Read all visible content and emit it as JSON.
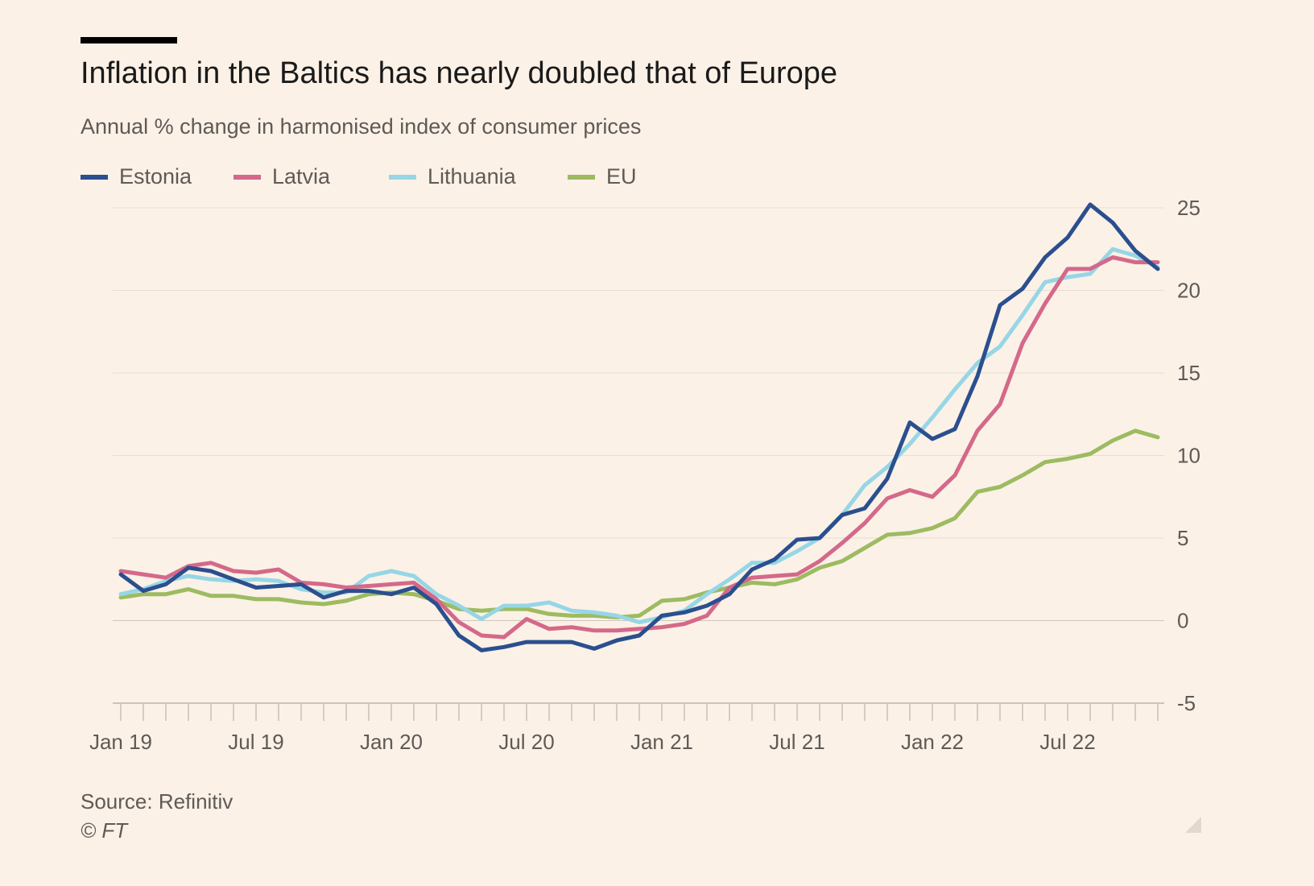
{
  "title": "Inflation in the Baltics has nearly doubled that of Europe",
  "subtitle": "Annual % change in harmonised index of consumer prices",
  "source": "Source: Refinitiv",
  "copyright": "© FT",
  "colors": {
    "background": "#fbf1e7",
    "Estonia": "#2b4f8e",
    "Latvia": "#d4698a",
    "Lithuania": "#96d6e6",
    "EU": "#9dbb61"
  },
  "chart_data": {
    "type": "line",
    "legend_placement": "top-left",
    "grid": true,
    "y_axis_side": "right",
    "ylim": [
      -5,
      25
    ],
    "yticks": [
      -5,
      0,
      5,
      10,
      15,
      20,
      25
    ],
    "x": [
      "Jan 19",
      "Feb 19",
      "Mar 19",
      "Apr 19",
      "May 19",
      "Jun 19",
      "Jul 19",
      "Aug 19",
      "Sep 19",
      "Oct 19",
      "Nov 19",
      "Dec 19",
      "Jan 20",
      "Feb 20",
      "Mar 20",
      "Apr 20",
      "May 20",
      "Jun 20",
      "Jul 20",
      "Aug 20",
      "Sep 20",
      "Oct 20",
      "Nov 20",
      "Dec 20",
      "Jan 21",
      "Feb 21",
      "Mar 21",
      "Apr 21",
      "May 21",
      "Jun 21",
      "Jul 21",
      "Aug 21",
      "Sep 21",
      "Oct 21",
      "Nov 21",
      "Dec 21",
      "Jan 22",
      "Feb 22",
      "Mar 22",
      "Apr 22",
      "May 22",
      "Jun 22",
      "Jul 22",
      "Aug 22",
      "Sep 22",
      "Oct 22",
      "Nov 22"
    ],
    "xtick_labels": [
      {
        "index": 0,
        "label": "Jan 19"
      },
      {
        "index": 6,
        "label": "Jul 19"
      },
      {
        "index": 12,
        "label": "Jan 20"
      },
      {
        "index": 18,
        "label": "Jul 20"
      },
      {
        "index": 24,
        "label": "Jan 21"
      },
      {
        "index": 30,
        "label": "Jul 21"
      },
      {
        "index": 36,
        "label": "Jan 22"
      },
      {
        "index": 42,
        "label": "Jul 22"
      }
    ],
    "series": [
      {
        "name": "Estonia",
        "values": [
          2.8,
          1.8,
          2.2,
          3.2,
          3.0,
          2.5,
          2.0,
          2.1,
          2.2,
          1.4,
          1.8,
          1.8,
          1.6,
          2.0,
          1.0,
          -0.9,
          -1.8,
          -1.6,
          -1.3,
          -1.3,
          -1.3,
          -1.7,
          -1.2,
          -0.9,
          0.3,
          0.5,
          0.9,
          1.6,
          3.1,
          3.7,
          4.9,
          5.0,
          6.4,
          6.8,
          8.6,
          12.0,
          11.0,
          11.6,
          14.8,
          19.1,
          20.1,
          22.0,
          23.2,
          25.2,
          24.1,
          22.4,
          21.3
        ]
      },
      {
        "name": "Latvia",
        "values": [
          3.0,
          2.8,
          2.6,
          3.3,
          3.5,
          3.0,
          2.9,
          3.1,
          2.3,
          2.2,
          2.0,
          2.1,
          2.2,
          2.3,
          1.3,
          -0.1,
          -0.9,
          -1.0,
          0.1,
          -0.5,
          -0.4,
          -0.6,
          -0.6,
          -0.5,
          -0.4,
          -0.2,
          0.3,
          2.0,
          2.6,
          2.7,
          2.8,
          3.6,
          4.7,
          5.9,
          7.4,
          7.9,
          7.5,
          8.8,
          11.5,
          13.1,
          16.8,
          19.2,
          21.3,
          21.3,
          22.0,
          21.7,
          21.7
        ]
      },
      {
        "name": "Lithuania",
        "values": [
          1.6,
          1.9,
          2.4,
          2.7,
          2.5,
          2.4,
          2.5,
          2.4,
          1.9,
          1.7,
          1.7,
          2.7,
          3.0,
          2.7,
          1.6,
          0.9,
          0.1,
          0.9,
          0.9,
          1.1,
          0.6,
          0.5,
          0.3,
          -0.1,
          0.2,
          0.6,
          1.6,
          2.5,
          3.5,
          3.5,
          4.2,
          5.0,
          6.4,
          8.2,
          9.3,
          10.7,
          12.3,
          14.0,
          15.6,
          16.6,
          18.5,
          20.5,
          20.8,
          21.0,
          22.5,
          22.1,
          21.4
        ]
      },
      {
        "name": "EU",
        "values": [
          1.4,
          1.6,
          1.6,
          1.9,
          1.5,
          1.5,
          1.3,
          1.3,
          1.1,
          1.0,
          1.2,
          1.6,
          1.7,
          1.6,
          1.2,
          0.7,
          0.6,
          0.7,
          0.7,
          0.4,
          0.3,
          0.3,
          0.2,
          0.3,
          1.2,
          1.3,
          1.7,
          2.0,
          2.3,
          2.2,
          2.5,
          3.2,
          3.6,
          4.4,
          5.2,
          5.3,
          5.6,
          6.2,
          7.8,
          8.1,
          8.8,
          9.6,
          9.8,
          10.1,
          10.9,
          11.5,
          11.1
        ]
      }
    ]
  }
}
